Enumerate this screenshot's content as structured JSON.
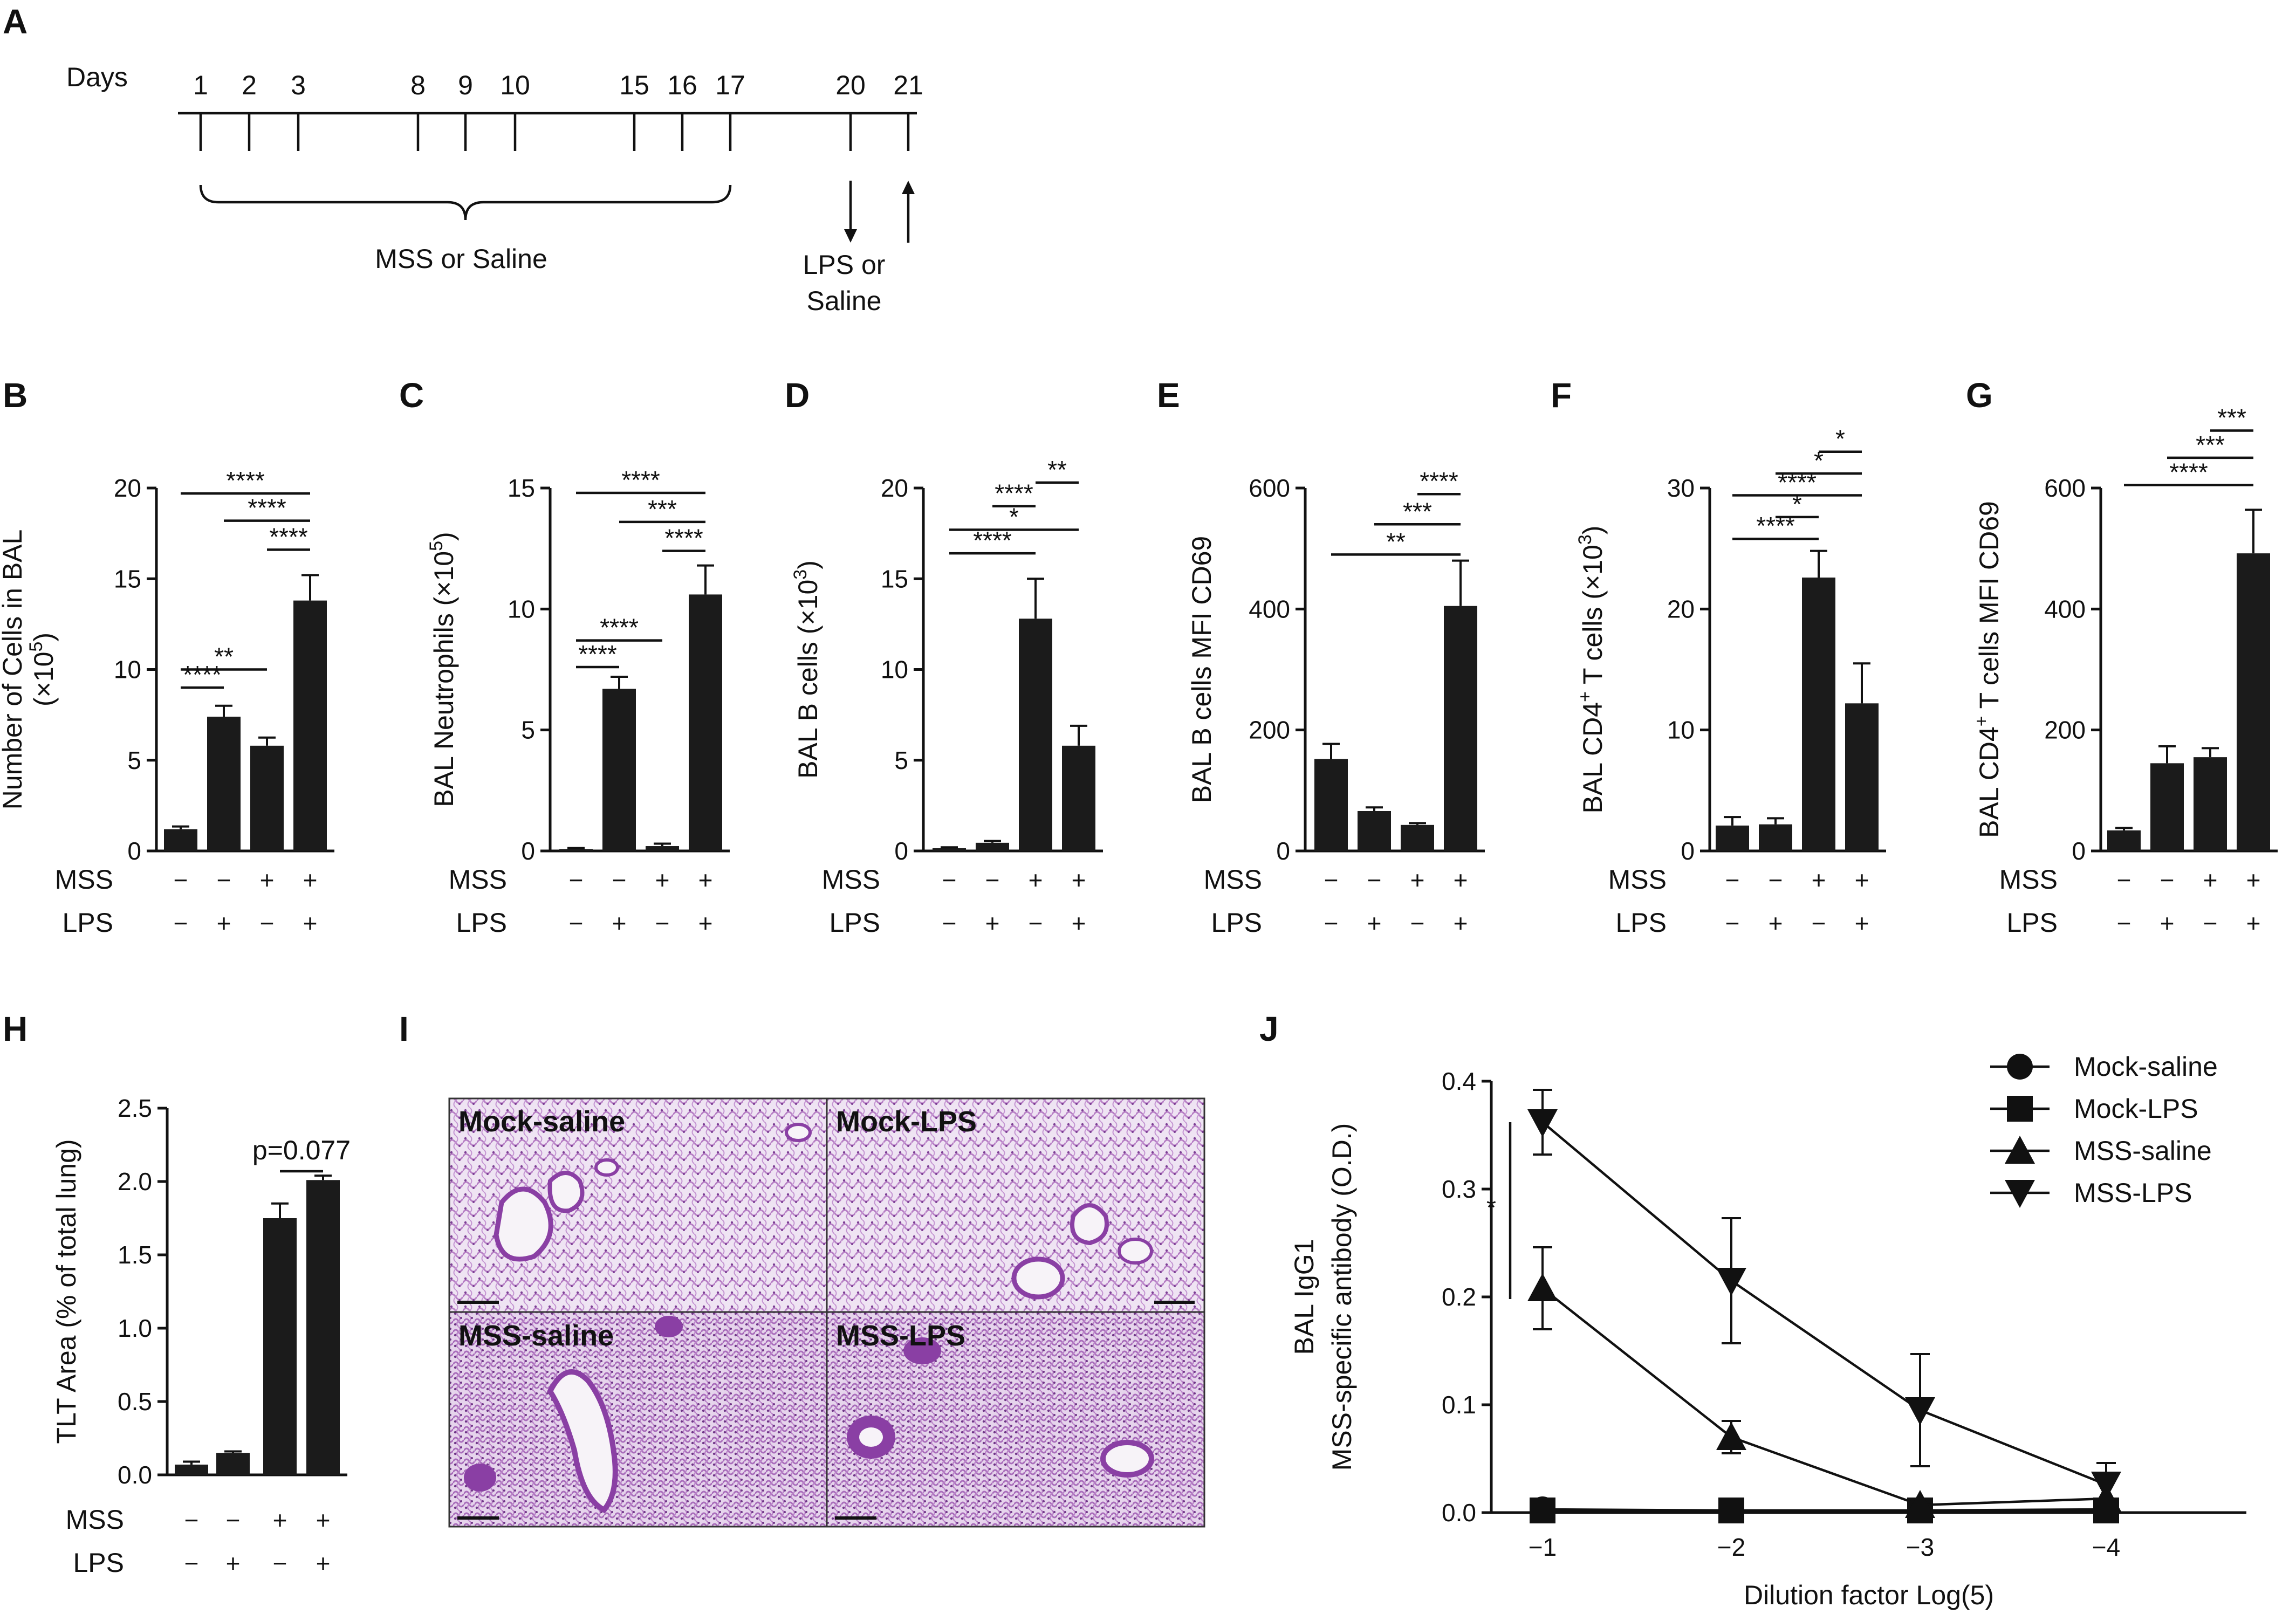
{
  "panels": {
    "A": {
      "letter": "A",
      "days_label": "Days",
      "days": [
        "1",
        "2",
        "3",
        "8",
        "9",
        "10",
        "15",
        "16",
        "17",
        "20",
        "21"
      ],
      "mss_label": "MSS or Saline",
      "lps_label_1": "LPS or",
      "lps_label_2": "Saline"
    },
    "H": {
      "letter": "H"
    },
    "I": {
      "letter": "I"
    },
    "J": {
      "letter": "J"
    }
  },
  "conditions": {
    "row1_label": "MSS",
    "row2_label": "LPS",
    "mss": [
      "−",
      "−",
      "+",
      "+"
    ],
    "lps": [
      "−",
      "+",
      "−",
      "+"
    ]
  },
  "histology": {
    "labels": [
      "Mock-saline",
      "Mock-LPS",
      "MSS-saline",
      "MSS-LPS"
    ],
    "tissue_color": "#b77fc5",
    "airway_color": "#8a3fa4"
  },
  "chart_data": [
    {
      "id": "B",
      "type": "bar",
      "letter": "B",
      "ylabel": "Number of Cells in BAL",
      "ylabel2": "(×10",
      "ysup": "5",
      "ylabel_tail": ")",
      "ylim": [
        0,
        20
      ],
      "ticks": [
        "0",
        "5",
        "10",
        "15",
        "20"
      ],
      "tick_values": [
        0,
        5,
        10,
        15,
        20
      ],
      "values": [
        1.2,
        7.4,
        5.8,
        13.8
      ],
      "errors": [
        0.15,
        0.6,
        0.45,
        1.4
      ],
      "significance": [
        {
          "a": 0,
          "b": 1,
          "y": 9.0,
          "label": "****"
        },
        {
          "a": 0,
          "b": 2,
          "y": 10.0,
          "label": "**"
        },
        {
          "a": 2,
          "b": 3,
          "y": 16.6,
          "label": "****"
        },
        {
          "a": 1,
          "b": 3,
          "y": 18.2,
          "label": "****"
        },
        {
          "a": 0,
          "b": 3,
          "y": 19.7,
          "label": "****"
        }
      ]
    },
    {
      "id": "C",
      "type": "bar",
      "letter": "C",
      "ylabel": "BAL Neutrophils (×10",
      "ysup": "5",
      "ylabel_tail": ")",
      "ylim": [
        0,
        15
      ],
      "ticks": [
        "0",
        "5",
        "10",
        "15"
      ],
      "tick_values": [
        0,
        5,
        10,
        15
      ],
      "values": [
        0.08,
        6.7,
        0.2,
        10.6
      ],
      "errors": [
        0.04,
        0.5,
        0.1,
        1.2
      ],
      "significance": [
        {
          "a": 0,
          "b": 1,
          "y": 7.6,
          "label": "****"
        },
        {
          "a": 0,
          "b": 2,
          "y": 8.7,
          "label": "****"
        },
        {
          "a": 2,
          "b": 3,
          "y": 12.4,
          "label": "****"
        },
        {
          "a": 1,
          "b": 3,
          "y": 13.6,
          "label": "***"
        },
        {
          "a": 0,
          "b": 3,
          "y": 14.8,
          "label": "****"
        }
      ]
    },
    {
      "id": "D",
      "type": "bar",
      "letter": "D",
      "ylabel": "BAL B cells (×10",
      "ysup": "3",
      "ylabel_tail": ")",
      "ylim": [
        0,
        20
      ],
      "ticks": [
        "0",
        "5",
        "10",
        "15",
        "20"
      ],
      "tick_values": [
        0,
        5,
        10,
        15,
        20
      ],
      "values": [
        0.15,
        0.45,
        12.8,
        5.8
      ],
      "errors": [
        0.05,
        0.1,
        2.2,
        1.1
      ],
      "significance": [
        {
          "a": 0,
          "b": 2,
          "y": 16.4,
          "label": "****"
        },
        {
          "a": 0,
          "b": 3,
          "y": 17.7,
          "label": "*"
        },
        {
          "a": 1,
          "b": 2,
          "y": 19.0,
          "label": "****"
        },
        {
          "a": 2,
          "b": 3,
          "y": 20.3,
          "label": "**"
        }
      ]
    },
    {
      "id": "E",
      "type": "bar",
      "letter": "E",
      "ylabel": "BAL B cells MFI CD69",
      "ylim": [
        0,
        600
      ],
      "ticks": [
        "0",
        "200",
        "400",
        "600"
      ],
      "tick_values": [
        0,
        200,
        400,
        600
      ],
      "values": [
        152,
        66,
        43,
        405
      ],
      "errors": [
        25,
        6,
        3,
        75
      ],
      "significance": [
        {
          "a": 0,
          "b": 3,
          "y": 490,
          "label": "**"
        },
        {
          "a": 1,
          "b": 3,
          "y": 540,
          "label": "***"
        },
        {
          "a": 2,
          "b": 3,
          "y": 590,
          "label": "****"
        }
      ]
    },
    {
      "id": "F",
      "type": "bar",
      "letter": "F",
      "ylabel": "BAL CD4",
      "ysup0": "+",
      "ylabel_mid": " T cells (×10",
      "ysup": "3",
      "ylabel_tail": ")",
      "ylim": [
        0,
        30
      ],
      "ticks": [
        "0",
        "10",
        "20",
        "30"
      ],
      "tick_values": [
        0,
        10,
        20,
        30
      ],
      "values": [
        2.1,
        2.2,
        22.6,
        12.2
      ],
      "errors": [
        0.7,
        0.5,
        2.2,
        3.3
      ],
      "significance": [
        {
          "a": 0,
          "b": 2,
          "y": 25.8,
          "label": "****"
        },
        {
          "a": 1,
          "b": 2,
          "y": 27.6,
          "label": "*"
        },
        {
          "a": 0,
          "b": 3,
          "y": 29.4,
          "label": "****"
        },
        {
          "a": 1,
          "b": 3,
          "y": 31.2,
          "label": "*"
        },
        {
          "a": 2,
          "b": 3,
          "y": 33.0,
          "label": "*"
        }
      ]
    },
    {
      "id": "G",
      "type": "bar",
      "letter": "G",
      "ylabel": "BAL CD4",
      "ysup0": "+",
      "ylabel_mid": " T cells MFI CD69",
      "ylim": [
        0,
        600
      ],
      "ticks": [
        "0",
        "200",
        "400",
        "600"
      ],
      "tick_values": [
        0,
        200,
        400,
        600
      ],
      "values": [
        34,
        145,
        155,
        492
      ],
      "errors": [
        4,
        28,
        15,
        72
      ],
      "significance": [
        {
          "a": 0,
          "b": 3,
          "y": 605,
          "label": "****"
        },
        {
          "a": 1,
          "b": 3,
          "y": 650,
          "label": "***"
        },
        {
          "a": 2,
          "b": 3,
          "y": 695,
          "label": "***"
        }
      ]
    },
    {
      "id": "H",
      "type": "bar",
      "letter": "H",
      "ylabel": "TLT Area (% of total lung)",
      "ylim": [
        0,
        2.5
      ],
      "ticks": [
        "0.0",
        "0.5",
        "1.0",
        "1.5",
        "2.0",
        "2.5"
      ],
      "tick_values": [
        0,
        0.5,
        1.0,
        1.5,
        2.0,
        2.5
      ],
      "values": [
        0.07,
        0.15,
        1.75,
        2.01
      ],
      "errors": [
        0.02,
        0.01,
        0.1,
        0.03
      ],
      "significance": [
        {
          "a": 2,
          "b": 3,
          "y": 2.07,
          "label": "p=0.077"
        }
      ]
    },
    {
      "id": "J",
      "type": "line",
      "letter": "J",
      "ylabel": "BAL IgG1",
      "ylabel2": "MSS-specific antibody (O.D.)",
      "xlabel": "Dilution factor Log(5)",
      "x": [
        -1,
        -2,
        -3,
        -4
      ],
      "x_ticks": [
        "−1",
        "−2",
        "−3",
        "−4"
      ],
      "ylim": [
        0,
        0.4
      ],
      "y_ticks": [
        "0.0",
        "0.1",
        "0.2",
        "0.3",
        "0.4"
      ],
      "y_tick_values": [
        0,
        0.1,
        0.2,
        0.3,
        0.4
      ],
      "series": [
        {
          "name": "Mock-saline",
          "marker": "circle",
          "values": [
            0.003,
            0.002,
            0.002,
            0.003
          ],
          "errors": [
            0.001,
            0.001,
            0.001,
            0.001
          ]
        },
        {
          "name": "Mock-LPS",
          "marker": "square",
          "values": [
            0.002,
            0.002,
            0.002,
            0.002
          ],
          "errors": [
            0.001,
            0.001,
            0.001,
            0.001
          ]
        },
        {
          "name": "MSS-saline",
          "marker": "triangle-up",
          "values": [
            0.208,
            0.07,
            0.007,
            0.013
          ],
          "errors": [
            0.038,
            0.015,
            0.003,
            0.004
          ]
        },
        {
          "name": "MSS-LPS",
          "marker": "triangle-down",
          "values": [
            0.362,
            0.215,
            0.095,
            0.026
          ],
          "errors": [
            0.03,
            0.058,
            0.052,
            0.02
          ]
        }
      ],
      "annotation": "*"
    }
  ]
}
